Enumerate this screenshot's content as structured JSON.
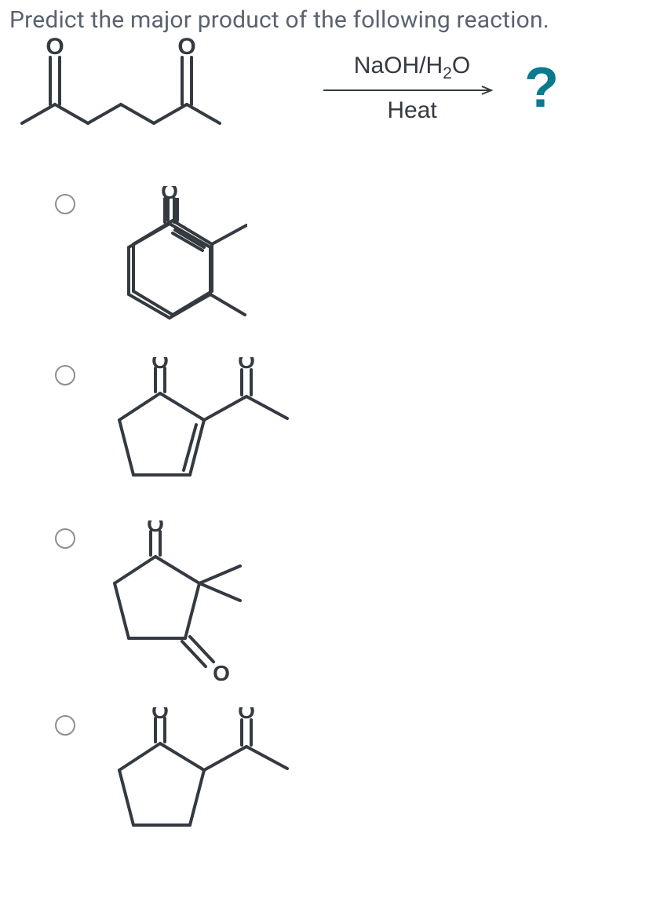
{
  "question": "Predict the major product of the following reaction.",
  "reagent_top_html": "NaOH/H<span class=\"sub\">2</span>O",
  "reagent_bottom": "Heat",
  "qmark": "?",
  "colors": {
    "text": "#5a6270",
    "reagent": "#343a40",
    "qmark": "#0b7a8f",
    "bond": "#343a40",
    "radio_border": "#8b8f96"
  },
  "stroke": {
    "bond_width": 4,
    "arrow_width": 2
  },
  "options_count": 4
}
